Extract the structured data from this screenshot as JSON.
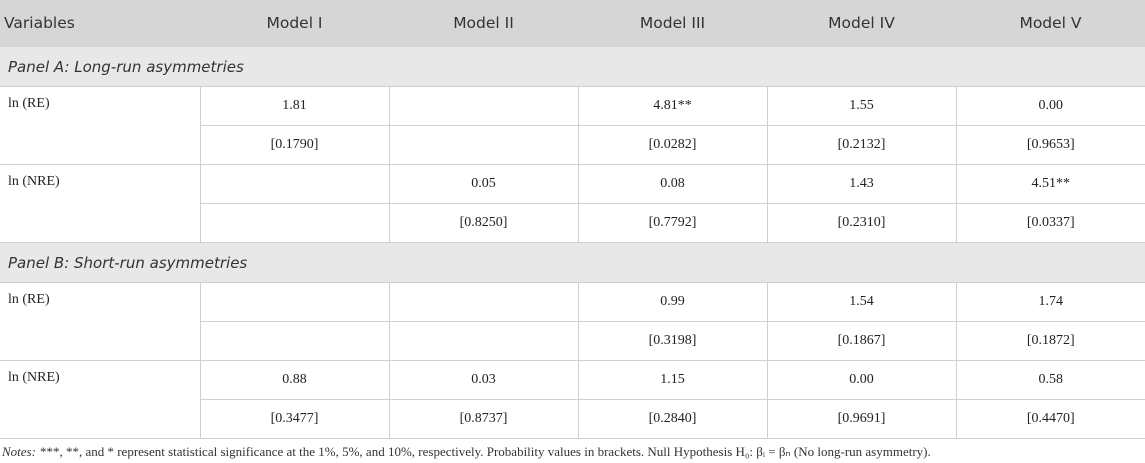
{
  "header": [
    "Variables",
    "Model I",
    "Model II",
    "Model III",
    "Model IV",
    "Model V"
  ],
  "panels": [
    {
      "title": "Panel A: Long-run asymmetries",
      "rows": [
        {
          "variable": "ln (RE)",
          "values": [
            "1.81",
            null,
            "4.81**",
            "1.55",
            "0.00"
          ],
          "pvalues": [
            "[0.1790]",
            null,
            "[0.0282]",
            "[0.2132]",
            "[0.9653]"
          ]
        },
        {
          "variable": "ln (NRE)",
          "values": [
            null,
            "0.05",
            "0.08",
            "1.43",
            "4.51**"
          ],
          "pvalues": [
            null,
            "[0.8250]",
            "[0.7792]",
            "[0.2310]",
            "[0.0337]"
          ]
        }
      ]
    },
    {
      "title": "Panel B: Short-run asymmetries",
      "rows": [
        {
          "variable": "ln (RE)",
          "values": [
            null,
            null,
            "0.99",
            "1.54",
            "1.74"
          ],
          "pvalues": [
            null,
            null,
            "[0.3198]",
            "[0.1867]",
            "[0.1872]"
          ]
        },
        {
          "variable": "ln (NRE)",
          "values": [
            "0.88",
            "0.03",
            "1.15",
            "0.00",
            "0.58"
          ],
          "pvalues": [
            "[0.3477]",
            "[0.8737]",
            "[0.2840]",
            "[0.9691]",
            "[0.4470]"
          ]
        }
      ]
    }
  ],
  "notes": {
    "label": "Notes:",
    "text": "***, **, and * represent statistical significance at the 1%, 5%, and 10%, respectively. Probability values in brackets. Null Hypothesis H₀: βᵢ = βₙ (No long-run asymmetry)."
  }
}
